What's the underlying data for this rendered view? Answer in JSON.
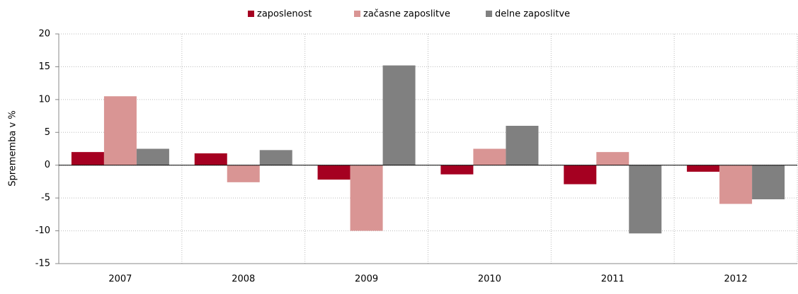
{
  "chart_data": {
    "type": "bar",
    "y_label": "Sprememba v %",
    "categories": [
      "2007",
      "2008",
      "2009",
      "2010",
      "2011",
      "2012"
    ],
    "series": [
      {
        "name": "zaposlenost",
        "color": "#a50021",
        "values": [
          2.0,
          1.8,
          -2.2,
          -1.4,
          -2.9,
          -1.0
        ]
      },
      {
        "name": "začasne zaposlitve",
        "color": "#d99594",
        "values": [
          10.5,
          -2.6,
          -10.0,
          2.5,
          2.0,
          -5.9
        ]
      },
      {
        "name": "delne zaposlitve",
        "color": "#808080",
        "values": [
          2.5,
          2.3,
          15.2,
          6.0,
          -10.4,
          -5.2
        ]
      }
    ],
    "ylim": [
      -15,
      20
    ],
    "yticks": [
      -15,
      -10,
      -5,
      0,
      5,
      10,
      15,
      20
    ],
    "grid": true,
    "legend": "top"
  }
}
